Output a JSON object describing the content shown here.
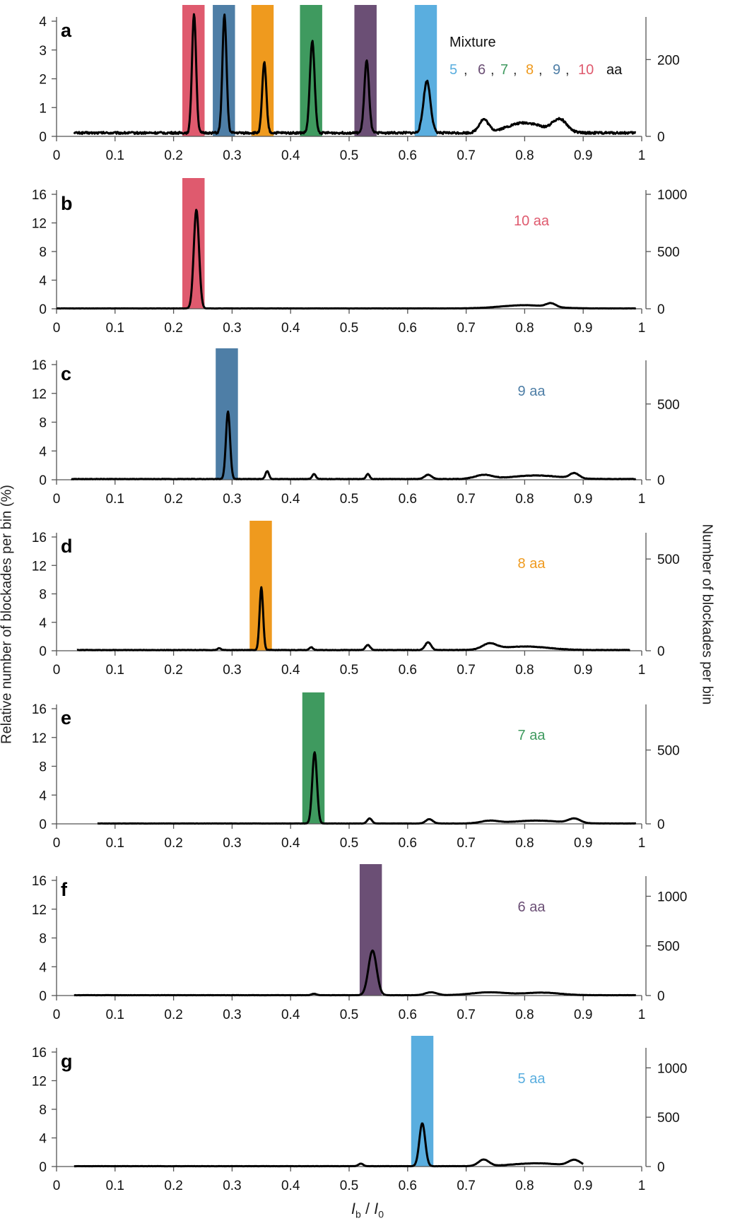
{
  "colors": {
    "10": "#df5a6e",
    "9": "#4e7ea6",
    "8": "#ef9a1e",
    "7": "#3f9a5f",
    "6": "#6b4f75",
    "5": "#5aaedf"
  },
  "axis_labels": {
    "left_y": "Relative number of blockades per bin (%)",
    "right_y": "Number of blockades per bin",
    "x_main": "I",
    "x_sub1": "b",
    "x_sep": " / ",
    "x_main2": "I",
    "x_sub2": "0"
  },
  "mixture_label": {
    "title": "Mixture",
    "items": [
      {
        "text": "5",
        "color": "#5aaedf"
      },
      {
        "text": ",",
        "color": "#333333"
      },
      {
        "text": "6",
        "color": "#6b4f75"
      },
      {
        "text": ",",
        "color": "#333333"
      },
      {
        "text": "7",
        "color": "#3f9a5f"
      },
      {
        "text": ",",
        "color": "#333333"
      },
      {
        "text": "8",
        "color": "#ef9a1e"
      },
      {
        "text": ",",
        "color": "#333333"
      },
      {
        "text": "9",
        "color": "#4e7ea6"
      },
      {
        "text": ",",
        "color": "#333333"
      },
      {
        "text": "10",
        "color": "#df5a6e"
      },
      {
        "text": "aa",
        "color": "#111111"
      }
    ]
  },
  "chart_data": [
    {
      "type": "line",
      "panel": "a",
      "xlim": [
        0,
        1
      ],
      "xticks": [
        "0",
        "0.1",
        "0.2",
        "0.3",
        "0.4",
        "0.5",
        "0.6",
        "0.7",
        "0.8",
        "0.9",
        "1"
      ],
      "ylim_left": [
        0,
        4
      ],
      "yticks_left": [
        "0",
        "1",
        "2",
        "3",
        "4"
      ],
      "ylim_right": [
        0,
        300
      ],
      "yticks_right": [
        {
          "v": 0,
          "t": "0"
        },
        {
          "v": 200,
          "t": "200"
        }
      ],
      "bands": [
        {
          "x0": 0.215,
          "x1": 0.253,
          "key": "10"
        },
        {
          "x0": 0.267,
          "x1": 0.305,
          "key": "9"
        },
        {
          "x0": 0.333,
          "x1": 0.371,
          "key": "8"
        },
        {
          "x0": 0.416,
          "x1": 0.454,
          "key": "7"
        },
        {
          "x0": 0.509,
          "x1": 0.547,
          "key": "6"
        },
        {
          "x0": 0.612,
          "x1": 0.65,
          "key": "5"
        }
      ],
      "trace": {
        "x_range": [
          0.03,
          0.99
        ],
        "baseline": 0.12,
        "peaks": [
          {
            "x": 0.235,
            "h": 4.15,
            "w": 0.0035
          },
          {
            "x": 0.287,
            "h": 4.1,
            "w": 0.0035
          },
          {
            "x": 0.355,
            "h": 2.45,
            "w": 0.0035
          },
          {
            "x": 0.437,
            "h": 3.2,
            "w": 0.004
          },
          {
            "x": 0.53,
            "h": 2.5,
            "w": 0.004
          },
          {
            "x": 0.633,
            "h": 1.8,
            "w": 0.006
          },
          {
            "x": 0.73,
            "h": 0.45,
            "w": 0.008
          },
          {
            "x": 0.8,
            "h": 0.35,
            "w": 0.03
          },
          {
            "x": 0.86,
            "h": 0.45,
            "w": 0.012
          }
        ]
      }
    },
    {
      "type": "line",
      "panel": "b",
      "label": "10 aa",
      "label_key": "10",
      "xlim": [
        0,
        1
      ],
      "xticks": [
        "0",
        "0.1",
        "0.2",
        "0.3",
        "0.4",
        "0.5",
        "0.6",
        "0.7",
        "0.8",
        "0.9",
        "1"
      ],
      "ylim_left": [
        0,
        16
      ],
      "yticks_left": [
        "0",
        "4",
        "8",
        "12",
        "16"
      ],
      "ylim_right": [
        0,
        1000
      ],
      "yticks_right": [
        {
          "v": 0,
          "t": "0"
        },
        {
          "v": 500,
          "t": "500"
        },
        {
          "v": 1000,
          "t": "1000"
        }
      ],
      "bands": [
        {
          "x0": 0.215,
          "x1": 0.253,
          "key": "10"
        }
      ],
      "trace": {
        "x_range": [
          0.0,
          0.99
        ],
        "baseline": 0.05,
        "peaks": [
          {
            "x": 0.239,
            "h": 13.8,
            "w": 0.0045
          },
          {
            "x": 0.8,
            "h": 0.45,
            "w": 0.04
          },
          {
            "x": 0.845,
            "h": 0.5,
            "w": 0.008
          }
        ]
      }
    },
    {
      "type": "line",
      "panel": "c",
      "label": "9 aa",
      "label_key": "9",
      "xlim": [
        0,
        1
      ],
      "xticks": [
        "0",
        "0.1",
        "0.2",
        "0.3",
        "0.4",
        "0.5",
        "0.6",
        "0.7",
        "0.8",
        "0.9",
        "1"
      ],
      "ylim_left": [
        0,
        16
      ],
      "yticks_left": [
        "0",
        "4",
        "8",
        "12",
        "16"
      ],
      "ylim_right": [
        0,
        760
      ],
      "yticks_right": [
        {
          "v": 0,
          "t": "0"
        },
        {
          "v": 500,
          "t": "500"
        }
      ],
      "bands": [
        {
          "x0": 0.272,
          "x1": 0.31,
          "key": "9"
        }
      ],
      "trace": {
        "x_range": [
          0.025,
          0.99
        ],
        "baseline": 0.1,
        "peaks": [
          {
            "x": 0.293,
            "h": 9.4,
            "w": 0.0035
          },
          {
            "x": 0.36,
            "h": 1.1,
            "w": 0.003
          },
          {
            "x": 0.44,
            "h": 0.7,
            "w": 0.003
          },
          {
            "x": 0.532,
            "h": 0.7,
            "w": 0.003
          },
          {
            "x": 0.635,
            "h": 0.6,
            "w": 0.006
          },
          {
            "x": 0.73,
            "h": 0.55,
            "w": 0.015
          },
          {
            "x": 0.82,
            "h": 0.5,
            "w": 0.04
          },
          {
            "x": 0.885,
            "h": 0.7,
            "w": 0.008
          }
        ]
      }
    },
    {
      "type": "line",
      "panel": "d",
      "label": "8 aa",
      "label_key": "8",
      "xlim": [
        0,
        1
      ],
      "xticks": [
        "0",
        "0.1",
        "0.2",
        "0.3",
        "0.4",
        "0.5",
        "0.6",
        "0.7",
        "0.8",
        "0.9",
        "1"
      ],
      "ylim_left": [
        0,
        16
      ],
      "yticks_left": [
        "0",
        "4",
        "8",
        "12",
        "16"
      ],
      "ylim_right": [
        0,
        620
      ],
      "yticks_right": [
        {
          "v": 0,
          "t": "0"
        },
        {
          "v": 500,
          "t": "500"
        }
      ],
      "bands": [
        {
          "x0": 0.33,
          "x1": 0.368,
          "key": "8"
        }
      ],
      "trace": {
        "x_range": [
          0.035,
          0.98
        ],
        "baseline": 0.1,
        "peaks": [
          {
            "x": 0.35,
            "h": 8.8,
            "w": 0.003
          },
          {
            "x": 0.278,
            "h": 0.25,
            "w": 0.003
          },
          {
            "x": 0.435,
            "h": 0.4,
            "w": 0.003
          },
          {
            "x": 0.532,
            "h": 0.7,
            "w": 0.004
          },
          {
            "x": 0.635,
            "h": 1.1,
            "w": 0.005
          },
          {
            "x": 0.74,
            "h": 0.8,
            "w": 0.012
          },
          {
            "x": 0.8,
            "h": 0.5,
            "w": 0.04
          }
        ]
      }
    },
    {
      "type": "line",
      "panel": "e",
      "label": "7 aa",
      "label_key": "7",
      "xlim": [
        0,
        1
      ],
      "xticks": [
        "0",
        "0.1",
        "0.2",
        "0.3",
        "0.4",
        "0.5",
        "0.6",
        "0.7",
        "0.8",
        "0.9",
        "1"
      ],
      "ylim_left": [
        0,
        16
      ],
      "yticks_left": [
        "0",
        "4",
        "8",
        "12",
        "16"
      ],
      "ylim_right": [
        0,
        780
      ],
      "yticks_right": [
        {
          "v": 0,
          "t": "0"
        },
        {
          "v": 500,
          "t": "500"
        }
      ],
      "bands": [
        {
          "x0": 0.42,
          "x1": 0.458,
          "key": "7"
        }
      ],
      "trace": {
        "x_range": [
          0.07,
          0.99
        ],
        "baseline": 0.05,
        "peaks": [
          {
            "x": 0.441,
            "h": 9.9,
            "w": 0.004
          },
          {
            "x": 0.535,
            "h": 0.7,
            "w": 0.004
          },
          {
            "x": 0.637,
            "h": 0.6,
            "w": 0.006
          },
          {
            "x": 0.74,
            "h": 0.35,
            "w": 0.015
          },
          {
            "x": 0.82,
            "h": 0.4,
            "w": 0.04
          },
          {
            "x": 0.885,
            "h": 0.6,
            "w": 0.01
          }
        ]
      }
    },
    {
      "type": "line",
      "panel": "f",
      "label": "6 aa",
      "label_key": "6",
      "xlim": [
        0,
        1
      ],
      "xticks": [
        "0",
        "0.1",
        "0.2",
        "0.3",
        "0.4",
        "0.5",
        "0.6",
        "0.7",
        "0.8",
        "0.9",
        "1"
      ],
      "ylim_left": [
        0,
        16
      ],
      "yticks_left": [
        "0",
        "4",
        "8",
        "12",
        "16"
      ],
      "ylim_right": [
        0,
        1160
      ],
      "yticks_right": [
        {
          "v": 0,
          "t": "0"
        },
        {
          "v": 500,
          "t": "500"
        },
        {
          "v": 1000,
          "t": "1000"
        }
      ],
      "bands": [
        {
          "x0": 0.518,
          "x1": 0.556,
          "key": "6"
        }
      ],
      "trace": {
        "x_range": [
          0.03,
          0.99
        ],
        "baseline": 0.05,
        "peaks": [
          {
            "x": 0.54,
            "h": 6.2,
            "w": 0.007
          },
          {
            "x": 0.44,
            "h": 0.2,
            "w": 0.004
          },
          {
            "x": 0.64,
            "h": 0.4,
            "w": 0.01
          },
          {
            "x": 0.74,
            "h": 0.4,
            "w": 0.03
          },
          {
            "x": 0.83,
            "h": 0.35,
            "w": 0.03
          }
        ]
      }
    },
    {
      "type": "line",
      "panel": "g",
      "label": "5 aa",
      "label_key": "5",
      "xlim": [
        0,
        1
      ],
      "xticks": [
        "0",
        "0.1",
        "0.2",
        "0.3",
        "0.4",
        "0.5",
        "0.6",
        "0.7",
        "0.8",
        "0.9",
        "1"
      ],
      "ylim_left": [
        0,
        16
      ],
      "yticks_left": [
        "0",
        "4",
        "8",
        "12",
        "16"
      ],
      "ylim_right": [
        0,
        1160
      ],
      "yticks_right": [
        {
          "v": 0,
          "t": "0"
        },
        {
          "v": 500,
          "t": "500"
        },
        {
          "v": 1000,
          "t": "1000"
        }
      ],
      "bands": [
        {
          "x0": 0.606,
          "x1": 0.644,
          "key": "5"
        }
      ],
      "trace": {
        "x_range": [
          0.03,
          0.9
        ],
        "baseline": 0.05,
        "peaks": [
          {
            "x": 0.625,
            "h": 6.0,
            "w": 0.005
          },
          {
            "x": 0.52,
            "h": 0.35,
            "w": 0.004
          },
          {
            "x": 0.73,
            "h": 0.9,
            "w": 0.009
          },
          {
            "x": 0.82,
            "h": 0.4,
            "w": 0.04
          },
          {
            "x": 0.885,
            "h": 0.8,
            "w": 0.01
          }
        ]
      }
    }
  ]
}
